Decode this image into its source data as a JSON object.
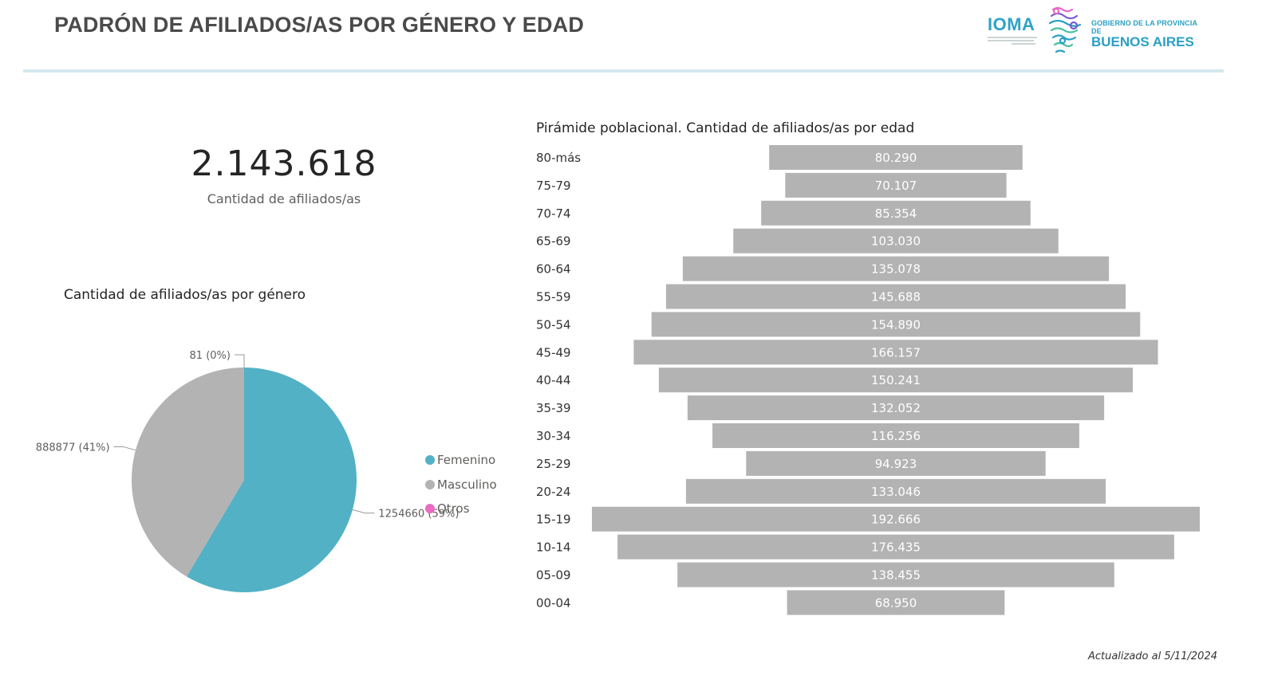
{
  "header": {
    "title": "PADRÓN DE AFILIADOS/AS POR GÉNERO Y EDAD",
    "logo_ioma": "IOMA",
    "logo_gov_small": "GOBIERNO DE LA PROVINCIA DE",
    "logo_gov_big": "BUENOS AIRES"
  },
  "kpi": {
    "value": "2.143.618",
    "label": "Cantidad de afiliados/as"
  },
  "footer": {
    "updated": "Actualizado al 5/11/2024"
  },
  "colors": {
    "femenino": "#52b1c5",
    "masculino": "#b3b3b3",
    "otros": "#e86bc4",
    "bar": "#b3b3b3",
    "accent_logo": "#2aa0c4"
  },
  "chart_data": [
    {
      "type": "pie",
      "title": "Cantidad de afiliados/as por género",
      "legend_position": "right",
      "slices": [
        {
          "name": "Femenino",
          "value": 1254660,
          "label": "1254660 (59%)",
          "color": "#52b1c5"
        },
        {
          "name": "Masculino",
          "value": 888877,
          "label": "888877 (41%)",
          "color": "#b3b3b3"
        },
        {
          "name": "Otros",
          "value": 81,
          "label": "81 (0%)",
          "color": "#e86bc4"
        }
      ]
    },
    {
      "type": "bar",
      "orientation": "horizontal-centered",
      "title": "Pirámide poblacional. Cantidad de afiliados/as por edad",
      "categories": [
        "80-más",
        "75-79",
        "70-74",
        "65-69",
        "60-64",
        "55-59",
        "50-54",
        "45-49",
        "40-44",
        "35-39",
        "30-34",
        "25-29",
        "20-24",
        "15-19",
        "10-14",
        "05-09",
        "00-04"
      ],
      "values": [
        80290,
        70107,
        85354,
        103030,
        135078,
        145688,
        154890,
        166157,
        150241,
        132052,
        116256,
        94923,
        133046,
        192666,
        176435,
        138455,
        68950
      ],
      "value_labels": [
        "80.290",
        "70.107",
        "85.354",
        "103.030",
        "135.078",
        "145.688",
        "154.890",
        "166.157",
        "150.241",
        "132.052",
        "116.256",
        "94.923",
        "133.046",
        "192.666",
        "176.435",
        "138.455",
        "68.950"
      ],
      "grid": false
    }
  ]
}
